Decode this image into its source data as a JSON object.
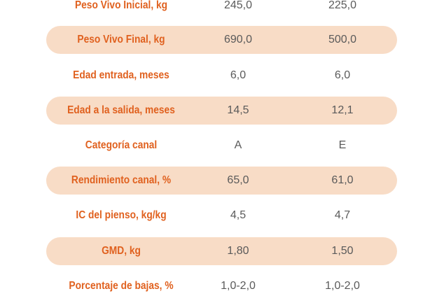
{
  "rows": [
    {
      "label": "Peso Vivo Inicial, kg",
      "a": "245,0",
      "b": "225,0"
    },
    {
      "label": "Peso Vivo Final, kg",
      "a": "690,0",
      "b": "500,0"
    },
    {
      "label": "Edad entrada, meses",
      "a": "6,0",
      "b": "6,0"
    },
    {
      "label": "Edad a la salida, meses",
      "a": "14,5",
      "b": "12,1"
    },
    {
      "label": "Categoría canal",
      "a": "A",
      "b": "E"
    },
    {
      "label": "Rendimiento canal, %",
      "a": "65,0",
      "b": "61,0"
    },
    {
      "label": "IC del pienso, kg/kg",
      "a": "4,5",
      "b": "4,7"
    },
    {
      "label": "GMD, kg",
      "a": "1,80",
      "b": "1,50"
    },
    {
      "label": "Porcentaje de bajas, %",
      "a": "1,0-2,0",
      "b": "1,0-2,0"
    }
  ],
  "colors": {
    "label": "#e0611f",
    "value": "#5a5a5a",
    "band": "#f8dcc6"
  }
}
